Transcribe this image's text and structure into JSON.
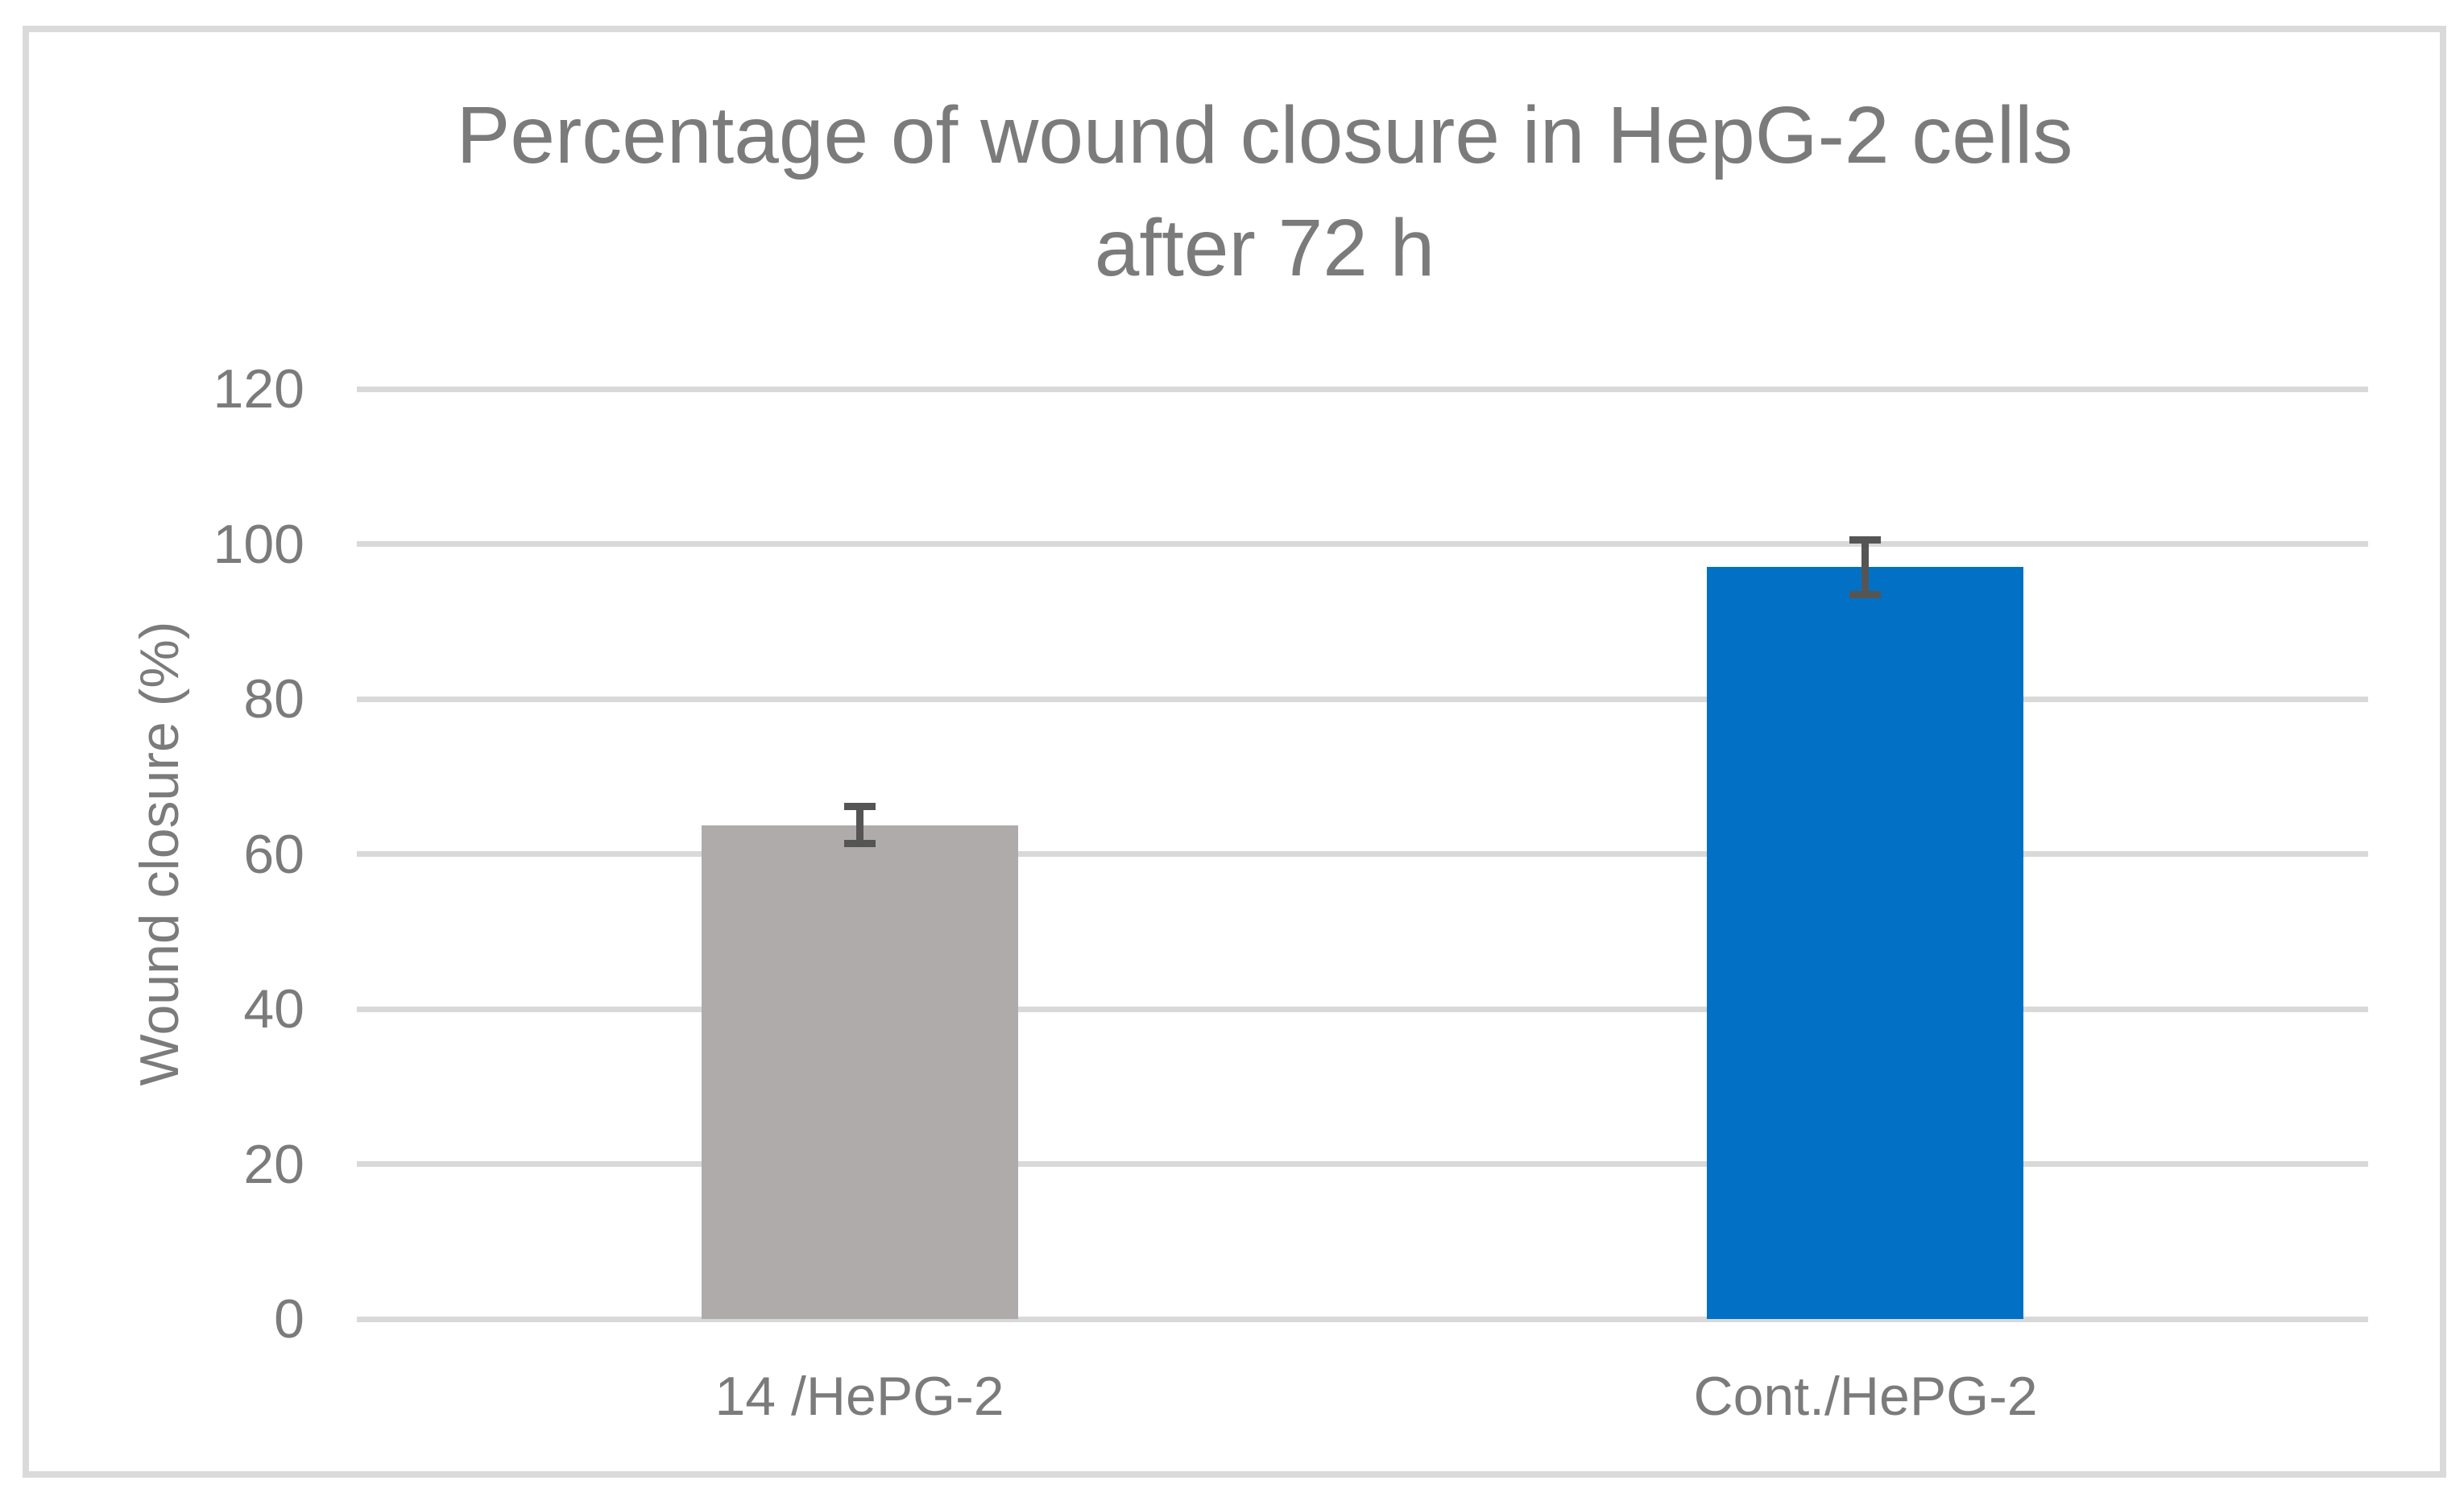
{
  "chart_data": {
    "type": "bar",
    "title": "Percentage of wound closure in HepG-2 cells after 72 h",
    "title_lines": [
      "Percentage of wound closure in HepG-2 cells",
      "after 72 h"
    ],
    "ylabel": "Wound closure (%)",
    "xlabel": "",
    "categories": [
      "14 /HePG-2",
      "Cont./HePG-2"
    ],
    "values": [
      63.7,
      97
    ],
    "errors": [
      2.4,
      3.5
    ],
    "bar_colors": [
      "#AFABAB",
      "#0271C5"
    ],
    "ylim": [
      0,
      120
    ],
    "yticks": [
      0,
      20,
      40,
      60,
      80,
      100,
      120
    ],
    "grid": "horizontal",
    "legend": "none",
    "error_bars": "symmetric with caps",
    "colors": {
      "gray_bar": "#AFABAB",
      "blue_bar": "#0271C5",
      "error_bar": "#555555",
      "gridline": "#D9D9D9",
      "frame_border": "#DADADA",
      "text": "#7B7B7B",
      "background": "#FFFFFF"
    }
  }
}
